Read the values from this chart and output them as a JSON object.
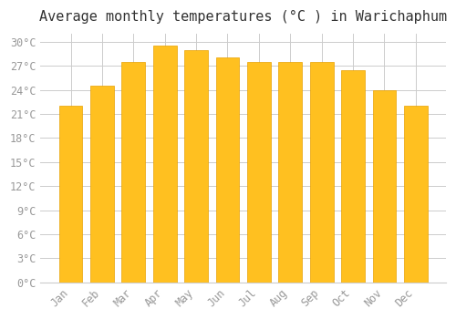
{
  "title": "Average monthly temperatures (°C ) in Warichaphum",
  "months": [
    "Jan",
    "Feb",
    "Mar",
    "Apr",
    "May",
    "Jun",
    "Jul",
    "Aug",
    "Sep",
    "Oct",
    "Nov",
    "Dec"
  ],
  "values": [
    22.0,
    24.5,
    27.5,
    29.5,
    29.0,
    28.0,
    27.5,
    27.5,
    27.5,
    26.5,
    24.0,
    22.0
  ],
  "bar_color_main": "#FFC020",
  "bar_color_edge": "#E8A000",
  "background_color": "#FFFFFF",
  "grid_color": "#CCCCCC",
  "ylim": [
    0,
    31
  ],
  "yticks": [
    0,
    3,
    6,
    9,
    12,
    15,
    18,
    21,
    24,
    27,
    30
  ],
  "ytick_labels": [
    "0°C",
    "3°C",
    "6°C",
    "9°C",
    "12°C",
    "15°C",
    "18°C",
    "21°C",
    "24°C",
    "27°C",
    "30°C"
  ],
  "title_fontsize": 11,
  "tick_fontsize": 8.5,
  "tick_color": "#999999",
  "xlabel_rotation": 45
}
